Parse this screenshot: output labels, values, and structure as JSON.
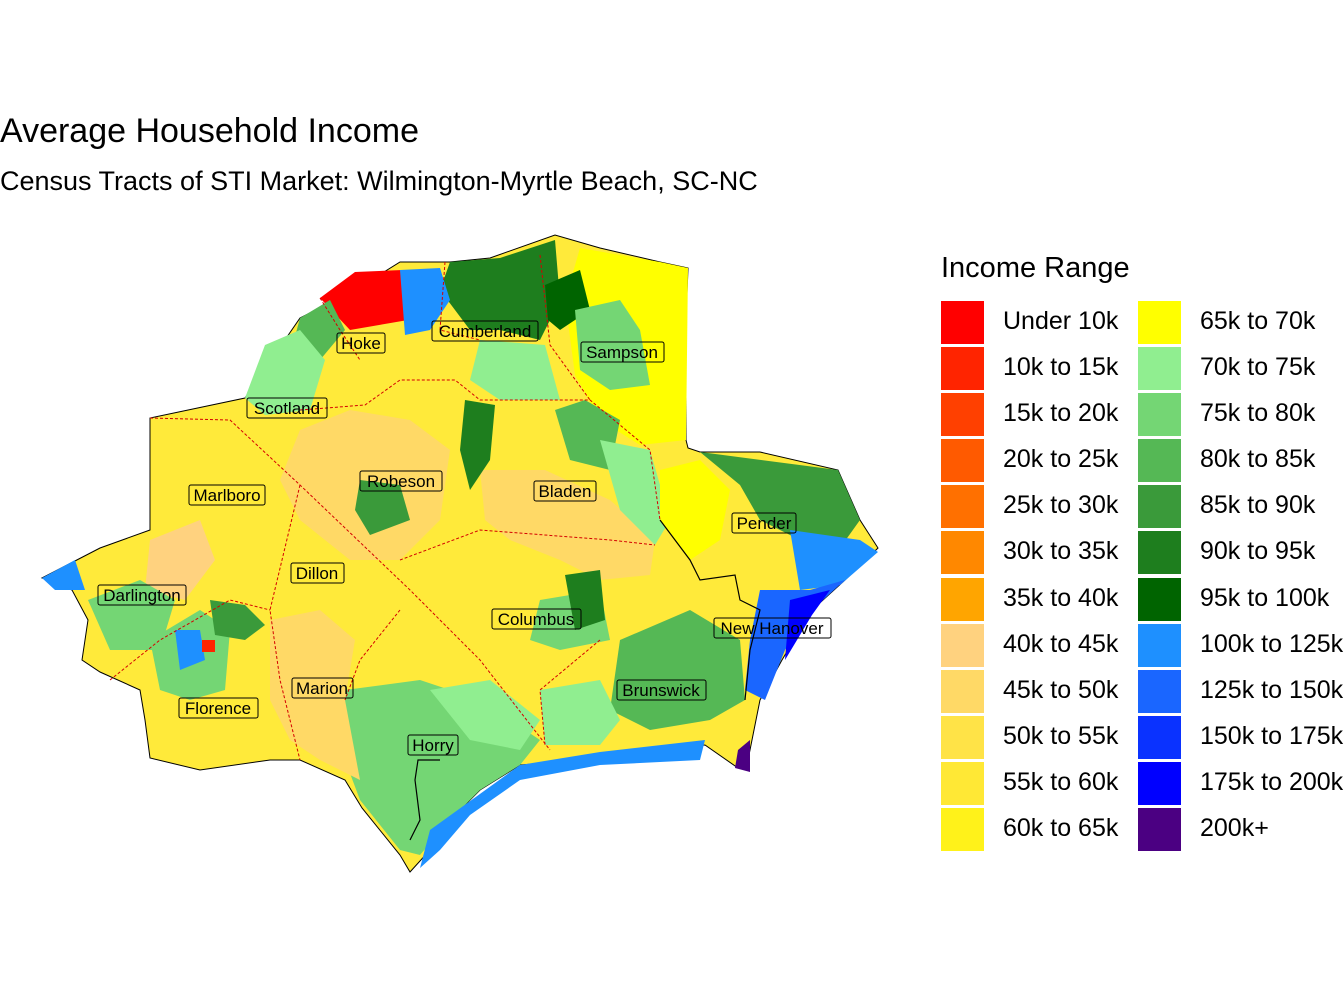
{
  "title": "Average Household Income",
  "subtitle": "Census Tracts of STI Market: Wilmington-Myrtle Beach, SC-NC",
  "legend": {
    "title": "Income Range",
    "items": [
      {
        "label": "Under 10k",
        "color": "#ff0000"
      },
      {
        "label": "10k to 15k",
        "color": "#ff2400"
      },
      {
        "label": "15k to 20k",
        "color": "#ff4000"
      },
      {
        "label": "20k to 25k",
        "color": "#ff5a00"
      },
      {
        "label": "25k to 30k",
        "color": "#ff7000"
      },
      {
        "label": "30k to 35k",
        "color": "#ff8800"
      },
      {
        "label": "35k to 40k",
        "color": "#ffa500"
      },
      {
        "label": "40k to 45k",
        "color": "#ffd27f"
      },
      {
        "label": "45k to 50k",
        "color": "#ffd966"
      },
      {
        "label": "50k to 55k",
        "color": "#ffe347"
      },
      {
        "label": "55k to 60k",
        "color": "#ffe835"
      },
      {
        "label": "60k to 65k",
        "color": "#fff21a"
      },
      {
        "label": "65k to 70k",
        "color": "#ffff00"
      },
      {
        "label": "70k to 75k",
        "color": "#90ee90"
      },
      {
        "label": "75k to 80k",
        "color": "#74d674"
      },
      {
        "label": "80k to 85k",
        "color": "#55b855"
      },
      {
        "label": "85k to 90k",
        "color": "#3a9a3a"
      },
      {
        "label": "90k to 95k",
        "color": "#1e7e1e"
      },
      {
        "label": "95k to 100k",
        "color": "#006400"
      },
      {
        "label": "100k to 125k",
        "color": "#1e90ff"
      },
      {
        "label": "125k to 150k",
        "color": "#1a66ff"
      },
      {
        "label": "150k to 175k",
        "color": "#0a32ff"
      },
      {
        "label": "175k to 200k",
        "color": "#0000ff"
      },
      {
        "label": "200k+",
        "color": "#4b0082"
      }
    ]
  },
  "counties": [
    "Hoke",
    "Cumberland",
    "Sampson",
    "Scotland",
    "Robeson",
    "Bladen",
    "Marlboro",
    "Pender",
    "Dillon",
    "Darlington",
    "Columbus",
    "New Hanover",
    "Marion",
    "Brunswick",
    "Florence",
    "Horry"
  ]
}
